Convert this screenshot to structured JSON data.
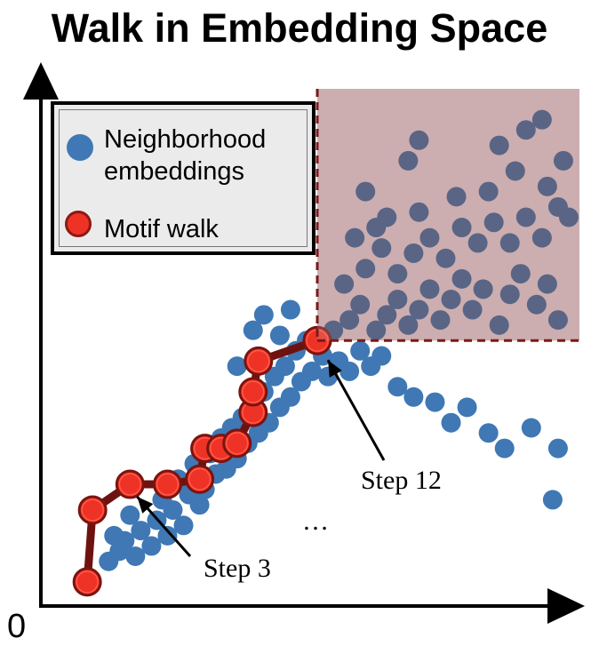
{
  "chart_data": {
    "type": "scatter",
    "title": "Walk in Embedding Space",
    "xlabel": "",
    "ylabel": "",
    "xlim": [
      0,
      10
    ],
    "ylim": [
      0,
      10
    ],
    "origin_label": "0",
    "legend": {
      "placement": "top-left",
      "entries": [
        {
          "label_line1": "Neighborhood",
          "label_line2": "embeddings",
          "color": "#3f78b4"
        },
        {
          "label": "Motif walk",
          "color": "#ef3226"
        }
      ]
    },
    "region": {
      "x": [
        5.1,
        10
      ],
      "y": [
        5.1,
        10
      ],
      "color": "#c6a4a6",
      "border": "#7a1a1a"
    },
    "annotations": [
      {
        "text": "Step 3",
        "point_index": 2
      },
      {
        "text": "Step 12",
        "point_index": 11
      },
      {
        "text": "…"
      }
    ],
    "walk": [
      [
        0.8,
        0.4
      ],
      [
        0.9,
        1.8
      ],
      [
        1.6,
        2.3
      ],
      [
        2.3,
        2.3
      ],
      [
        2.9,
        2.4
      ],
      [
        3.0,
        3.0
      ],
      [
        3.3,
        3.0
      ],
      [
        3.6,
        3.1
      ],
      [
        3.9,
        3.7
      ],
      [
        3.9,
        4.1
      ],
      [
        4.0,
        4.7
      ],
      [
        5.1,
        5.1
      ]
    ],
    "series": [
      {
        "name": "Neighborhood embeddings",
        "points": [
          [
            1.2,
            0.8
          ],
          [
            1.4,
            1.0
          ],
          [
            1.5,
            1.2
          ],
          [
            1.7,
            0.9
          ],
          [
            1.3,
            1.3
          ],
          [
            1.8,
            1.4
          ],
          [
            2.0,
            1.1
          ],
          [
            2.1,
            1.6
          ],
          [
            1.6,
            1.7
          ],
          [
            2.3,
            1.3
          ],
          [
            2.4,
            1.8
          ],
          [
            2.6,
            1.5
          ],
          [
            2.2,
            2.0
          ],
          [
            2.7,
            2.1
          ],
          [
            2.5,
            2.4
          ],
          [
            2.9,
            1.9
          ],
          [
            3.0,
            2.2
          ],
          [
            3.2,
            2.5
          ],
          [
            2.8,
            2.7
          ],
          [
            3.1,
            2.9
          ],
          [
            3.4,
            2.6
          ],
          [
            3.3,
            3.2
          ],
          [
            3.6,
            2.8
          ],
          [
            3.5,
            3.4
          ],
          [
            3.8,
            3.1
          ],
          [
            3.7,
            3.6
          ],
          [
            4.0,
            3.3
          ],
          [
            3.9,
            3.9
          ],
          [
            4.2,
            3.5
          ],
          [
            4.1,
            4.1
          ],
          [
            4.4,
            3.8
          ],
          [
            4.3,
            4.4
          ],
          [
            4.6,
            4.0
          ],
          [
            4.5,
            4.6
          ],
          [
            4.8,
            4.3
          ],
          [
            4.7,
            4.9
          ],
          [
            5.0,
            4.5
          ],
          [
            4.9,
            5.1
          ],
          [
            5.2,
            4.8
          ],
          [
            5.3,
            4.4
          ],
          [
            5.5,
            4.7
          ],
          [
            5.7,
            4.5
          ],
          [
            5.9,
            4.9
          ],
          [
            6.1,
            4.6
          ],
          [
            6.3,
            4.8
          ],
          [
            6.6,
            4.2
          ],
          [
            6.9,
            4.0
          ],
          [
            7.3,
            3.9
          ],
          [
            7.6,
            3.5
          ],
          [
            7.9,
            3.8
          ],
          [
            8.3,
            3.3
          ],
          [
            8.6,
            3.0
          ],
          [
            9.1,
            3.4
          ],
          [
            9.5,
            2.0
          ],
          [
            9.6,
            3.0
          ],
          [
            3.9,
            5.3
          ],
          [
            4.1,
            5.6
          ],
          [
            4.4,
            5.2
          ],
          [
            4.6,
            5.7
          ],
          [
            3.6,
            4.6
          ],
          [
            5.4,
            5.3
          ],
          [
            5.7,
            5.5
          ],
          [
            5.9,
            5.8
          ],
          [
            6.2,
            5.3
          ],
          [
            6.4,
            5.6
          ],
          [
            6.6,
            5.9
          ],
          [
            6.8,
            5.4
          ],
          [
            7.0,
            5.7
          ],
          [
            7.2,
            6.1
          ],
          [
            7.4,
            5.5
          ],
          [
            7.6,
            5.9
          ],
          [
            7.8,
            6.3
          ],
          [
            8.0,
            5.7
          ],
          [
            8.2,
            6.1
          ],
          [
            8.5,
            5.4
          ],
          [
            8.7,
            6.0
          ],
          [
            8.9,
            6.4
          ],
          [
            9.2,
            5.8
          ],
          [
            9.4,
            6.2
          ],
          [
            9.6,
            5.5
          ],
          [
            6.0,
            6.5
          ],
          [
            6.3,
            6.9
          ],
          [
            6.6,
            6.4
          ],
          [
            6.9,
            6.8
          ],
          [
            7.2,
            7.1
          ],
          [
            7.5,
            6.7
          ],
          [
            7.8,
            7.3
          ],
          [
            8.1,
            7.0
          ],
          [
            8.4,
            7.4
          ],
          [
            8.7,
            7.0
          ],
          [
            9.0,
            7.5
          ],
          [
            9.3,
            7.1
          ],
          [
            9.6,
            7.7
          ],
          [
            6.4,
            7.5
          ],
          [
            7.0,
            7.6
          ],
          [
            7.7,
            7.9
          ],
          [
            8.3,
            8.0
          ],
          [
            8.8,
            8.4
          ],
          [
            9.4,
            8.1
          ],
          [
            9.7,
            8.6
          ],
          [
            8.5,
            8.9
          ],
          [
            9.0,
            9.2
          ],
          [
            9.3,
            9.4
          ],
          [
            7.0,
            9.0
          ],
          [
            6.8,
            8.6
          ],
          [
            6.0,
            8.0
          ],
          [
            5.8,
            7.1
          ],
          [
            6.2,
            7.3
          ],
          [
            9.8,
            7.5
          ],
          [
            5.6,
            6.2
          ]
        ]
      }
    ]
  }
}
